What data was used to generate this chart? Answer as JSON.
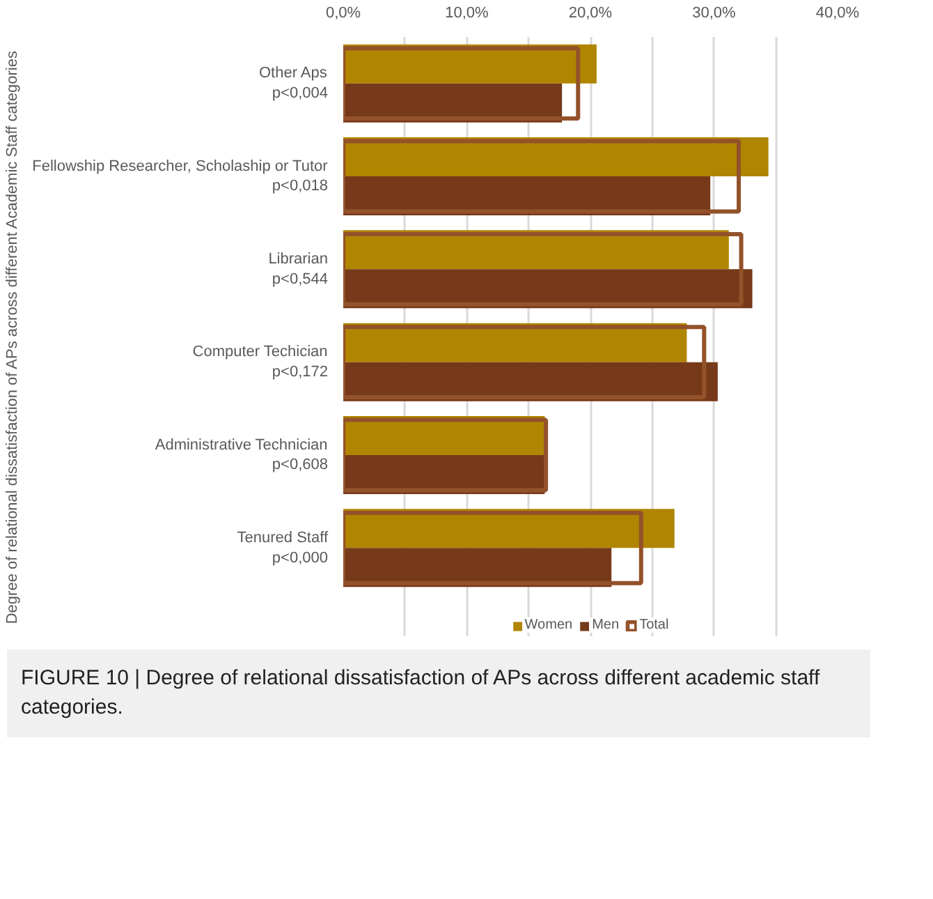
{
  "chart_data": {
    "type": "bar",
    "orientation": "horizontal",
    "ylabel": "Degree of relational dissatisfaction of APs across different Academic Staff categories",
    "categories": [
      "Other Aps\np<0,004",
      "Fellowship Researcher, Scholaship or Tutor\np<0,018",
      "Librarian\np<0,544",
      "Computer Techician\np<0,172",
      "Administrative Technician\np<0,608",
      "Tenured Staff\np<0,000"
    ],
    "series": [
      {
        "name": "Women",
        "color": "#b08500",
        "values": [
          20.5,
          34.4,
          31.2,
          27.8,
          16.3,
          26.8
        ]
      },
      {
        "name": "Men",
        "color": "#763a1a",
        "values": [
          17.7,
          29.7,
          33.1,
          30.3,
          16.3,
          21.7
        ]
      },
      {
        "name": "Total",
        "color": "#93522a",
        "line_style": "solid",
        "values": [
          19.0,
          32.0,
          32.2,
          29.2,
          16.4,
          24.1
        ]
      }
    ],
    "xlim": [
      0,
      40
    ],
    "xticks": [
      {
        "value": 0,
        "label": "0,0%"
      },
      {
        "value": 5,
        "label": null
      },
      {
        "value": 10,
        "label": "10,0%"
      },
      {
        "value": 15,
        "label": null
      },
      {
        "value": 20,
        "label": "20,0%"
      },
      {
        "value": 25,
        "label": null
      },
      {
        "value": 30,
        "label": "30,0%"
      },
      {
        "value": 35,
        "label": null
      },
      {
        "value": 40,
        "label": "40,0%"
      }
    ],
    "grid": "x",
    "legend": "bottom",
    "annotations": [
      "FIGURE 10 | Degree of relational dissatisfaction of APs across different academic staff categories."
    ]
  }
}
